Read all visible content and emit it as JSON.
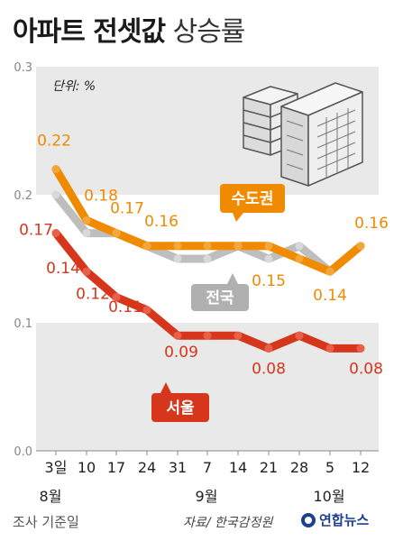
{
  "title_main": "아파트 전셋값",
  "title_sub": "상승률",
  "unit_label": "단위: %",
  "month_labels": [
    "8월",
    "9월",
    "10월"
  ],
  "footer": {
    "survey_label": "조사 기준일",
    "source": "자료/ 한국감정원",
    "logo": "연합뉴스"
  },
  "colors": {
    "capital": "#f08a00",
    "national": "#b3b3b3",
    "seoul": "#d6361b",
    "band": "#e9e9e9"
  },
  "chart_data": {
    "type": "line",
    "categories": [
      "3일",
      "10",
      "17",
      "24",
      "31",
      "7",
      "14",
      "21",
      "28",
      "5",
      "12"
    ],
    "ylim": [
      0,
      0.3
    ],
    "yticks": [
      "0.0",
      "0.1",
      "0.2",
      "0.3"
    ],
    "series": [
      {
        "name": "수도권",
        "values": [
          0.22,
          0.18,
          0.17,
          0.16,
          0.16,
          0.16,
          0.16,
          0.16,
          0.15,
          0.14,
          0.16
        ],
        "labels": [
          "0.22",
          "0.18",
          "0.17",
          "0.16",
          "",
          "",
          "",
          "",
          "0.15",
          "0.14",
          "0.16"
        ]
      },
      {
        "name": "전국",
        "values": [
          0.2,
          0.17,
          0.17,
          0.16,
          0.15,
          0.15,
          0.16,
          0.15,
          0.16,
          0.14,
          null
        ],
        "labels": []
      },
      {
        "name": "서울",
        "values": [
          0.17,
          0.14,
          0.12,
          0.11,
          0.09,
          0.09,
          0.09,
          0.08,
          0.09,
          0.08,
          0.08
        ],
        "labels": [
          "0.17",
          "0.14",
          "0.12",
          "0.11",
          "0.09",
          "",
          "",
          "0.08",
          "",
          "",
          "0.08"
        ]
      }
    ]
  }
}
